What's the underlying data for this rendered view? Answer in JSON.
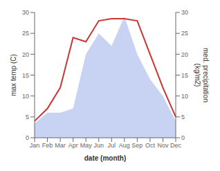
{
  "chart_data": {
    "type": "line",
    "categories": [
      "Jan",
      "Feb",
      "Mar",
      "Apr",
      "May",
      "Jun",
      "Jul",
      "Aug",
      "Sep",
      "Oct",
      "Nov",
      "Dec"
    ],
    "xlabel": "date (month)",
    "ylabel": "max temp (C)",
    "y2label": "med. precipitation\n(kg/m2)",
    "ylim": [
      0,
      30
    ],
    "yticks": [
      0,
      5,
      10,
      15,
      20,
      25,
      30
    ],
    "y2lim": [
      0,
      30
    ],
    "y2ticks": [
      0,
      5,
      10,
      15,
      20,
      25,
      30
    ],
    "grid": false,
    "series": [
      {
        "type": "area",
        "axis": "y2",
        "color": "#aabbee",
        "values": [
          3.5,
          6,
          6,
          7,
          20,
          25,
          22,
          29,
          20,
          14,
          10,
          4
        ]
      },
      {
        "type": "line",
        "color": "#cc3333",
        "values": [
          4,
          7,
          12,
          24,
          23,
          28,
          28.5,
          28.5,
          28,
          20,
          12,
          5
        ]
      }
    ]
  }
}
